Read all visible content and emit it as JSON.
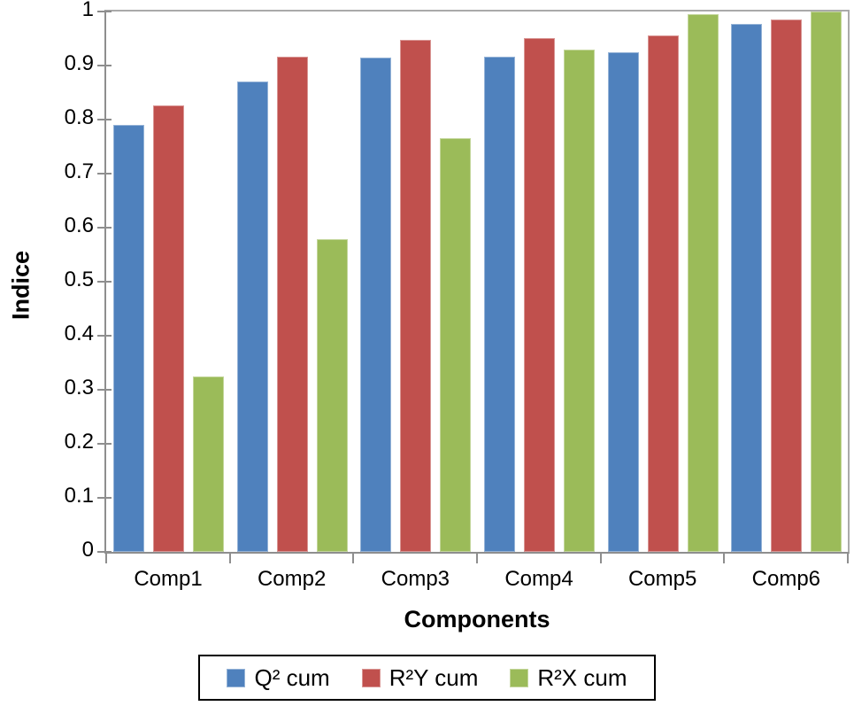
{
  "chart_data": {
    "type": "bar",
    "title": "",
    "xlabel": "Components",
    "ylabel": "Indice",
    "categories": [
      "Comp1",
      "Comp2",
      "Comp3",
      "Comp4",
      "Comp5",
      "Comp6"
    ],
    "series": [
      {
        "name": "Q² cum",
        "color": "#4F81BD",
        "border_color": "#95B3D7",
        "values": [
          0.79,
          0.871,
          0.915,
          0.917,
          0.925,
          0.977
        ]
      },
      {
        "name": "R²Y cum",
        "color": "#C0504D",
        "border_color": "#D99694",
        "values": [
          0.827,
          0.916,
          0.947,
          0.951,
          0.955,
          0.986
        ]
      },
      {
        "name": "R²X cum",
        "color": "#9BBB59",
        "border_color": "#C3D69B",
        "values": [
          0.324,
          0.579,
          0.766,
          0.93,
          0.995,
          1.0
        ]
      }
    ],
    "ylim": [
      0,
      1
    ],
    "ytick_labels": [
      "0",
      "0.1",
      "0.2",
      "0.3",
      "0.4",
      "0.5",
      "0.6",
      "0.7",
      "0.8",
      "0.9",
      "1"
    ],
    "grid": false,
    "legend_position": "bottom",
    "axis_color": "#8e8e8e",
    "plot_border_color": "#aaaaaa"
  }
}
